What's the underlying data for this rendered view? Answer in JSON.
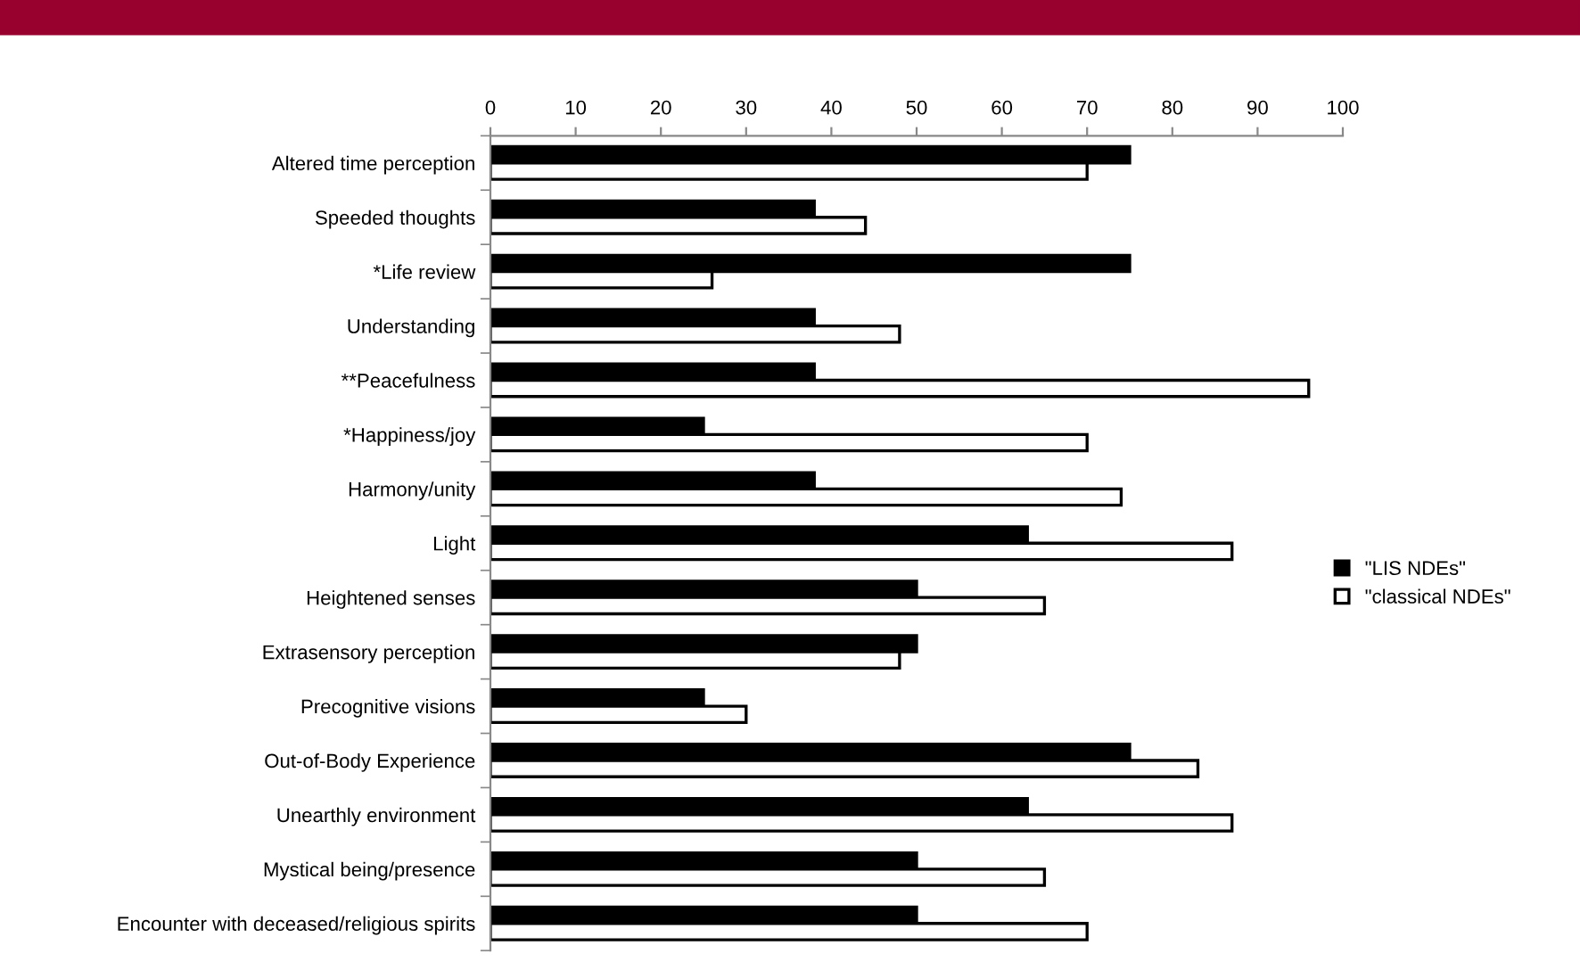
{
  "chart_data": {
    "type": "bar",
    "orientation": "horizontal",
    "categories": [
      "Altered time perception",
      "Speeded thoughts",
      "*Life review",
      "Understanding",
      "**Peacefulness",
      "*Happiness/joy",
      "Harmony/unity",
      "Light",
      "Heightened senses",
      "Extrasensory perception",
      "Precognitive visions",
      "Out-of-Body Experience",
      "Unearthly environment",
      "Mystical being/presence",
      "Encounter with deceased/religious spirits"
    ],
    "series": [
      {
        "name": "\"LIS NDEs\"",
        "color": "#000000",
        "values": [
          75,
          38,
          75,
          38,
          38,
          25,
          38,
          63,
          50,
          50,
          25,
          75,
          63,
          50,
          50
        ]
      },
      {
        "name": "\"classical NDEs\"",
        "color": "#ffffff",
        "values": [
          70,
          44,
          26,
          48,
          96,
          70,
          74,
          87,
          65,
          48,
          30,
          83,
          87,
          65,
          70
        ]
      }
    ],
    "xlim": [
      0,
      100
    ],
    "xticks": [
      0,
      10,
      20,
      30,
      40,
      50,
      60,
      70,
      80,
      90,
      100
    ],
    "grid": false,
    "legend": "right"
  }
}
